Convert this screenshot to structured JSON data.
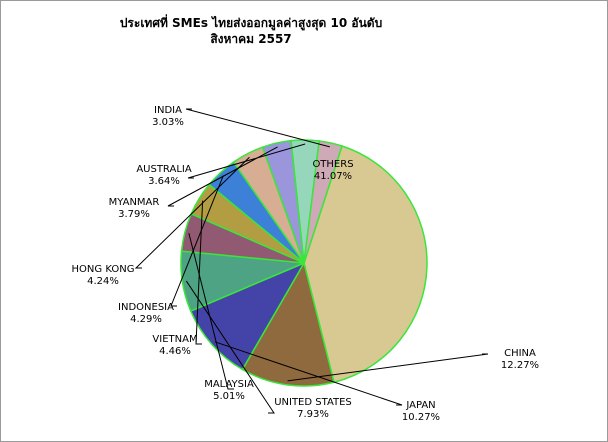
{
  "chart_data": {
    "type": "pie",
    "title": "ประเทศที่ SMEs ไทยส่งออกมูลค่าสูงสุด 10 อันดับ",
    "subtitle": "สิงหาคม 2557",
    "slices": [
      {
        "label": "OTHERS",
        "value": 41.07,
        "display": "41.07%",
        "color": "#d8c892"
      },
      {
        "label": "CHINA",
        "value": 12.27,
        "display": "12.27%",
        "color": "#8f6a3e"
      },
      {
        "label": "JAPAN",
        "value": 10.27,
        "display": "10.27%",
        "color": "#4444a8"
      },
      {
        "label": "UNITED STATES",
        "value": 7.93,
        "display": "7.93%",
        "color": "#4da383"
      },
      {
        "label": "MALAYSIA",
        "value": 5.01,
        "display": "5.01%",
        "color": "#925a72"
      },
      {
        "label": "VIETNAM",
        "value": 4.46,
        "display": "4.46%",
        "color": "#b39d43"
      },
      {
        "label": "INDONESIA",
        "value": 4.29,
        "display": "4.29%",
        "color": "#3d80d8"
      },
      {
        "label": "HONG KONG",
        "value": 4.24,
        "display": "4.24%",
        "color": "#d7ae93"
      },
      {
        "label": "MYANMAR",
        "value": 3.79,
        "display": "3.79%",
        "color": "#9b95dc"
      },
      {
        "label": "AUSTRALIA",
        "value": 3.64,
        "display": "3.64%",
        "color": "#96d6bb"
      },
      {
        "label": "INDIA",
        "value": 3.03,
        "display": "3.03%",
        "color": "#cea9b6"
      }
    ],
    "slice_border_color": "#39e639",
    "leader_line_color": "#000000"
  }
}
